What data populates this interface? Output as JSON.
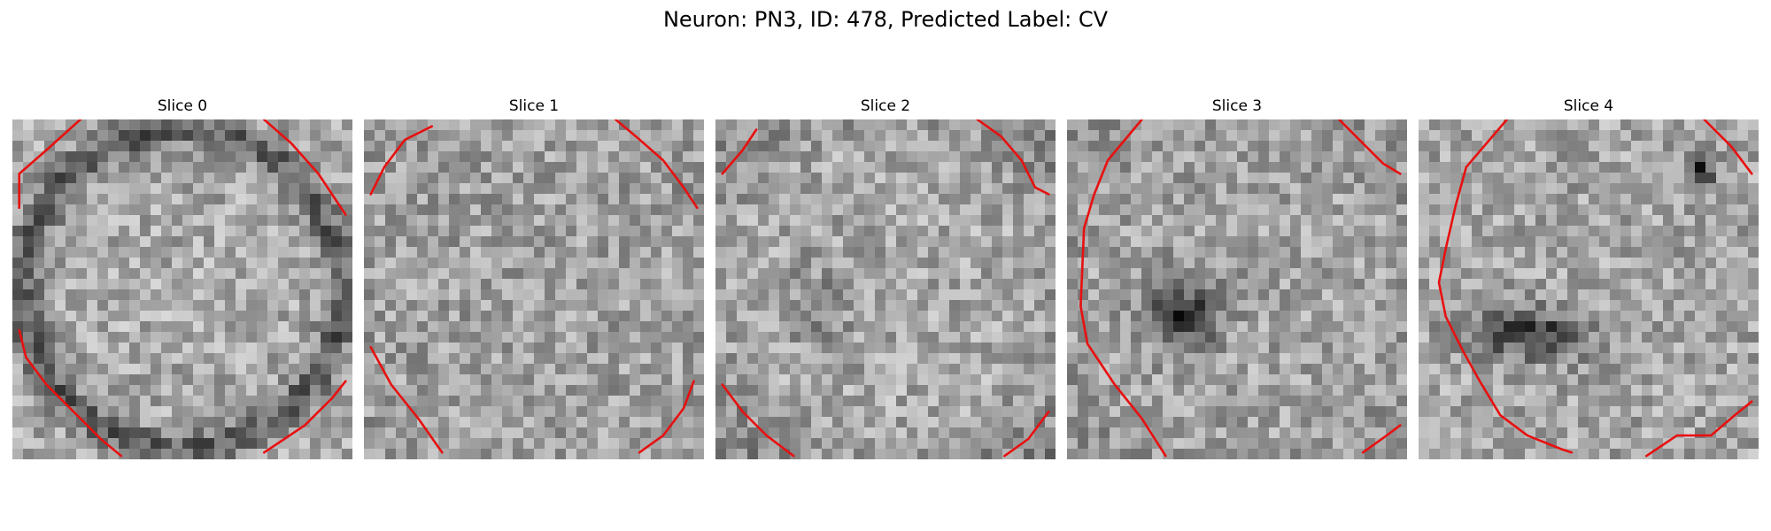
{
  "figure": {
    "title": "Neuron: PN3, ID: 478, Predicted Label: CV"
  },
  "colors": {
    "contour": "#e81010",
    "background": "#ffffff",
    "colormap": "gray"
  },
  "panels": [
    {
      "title": "Slice 0",
      "pattern": "bright-center-dark-ring",
      "contours": [
        [
          [
            0.02,
            0.26
          ],
          [
            0.02,
            0.16
          ],
          [
            0.1,
            0.09
          ],
          [
            0.2,
            0.0
          ]
        ],
        [
          [
            0.74,
            0.0
          ],
          [
            0.82,
            0.07
          ],
          [
            0.9,
            0.16
          ],
          [
            0.96,
            0.25
          ],
          [
            0.98,
            0.28
          ]
        ],
        [
          [
            0.02,
            0.62
          ],
          [
            0.04,
            0.7
          ],
          [
            0.1,
            0.78
          ],
          [
            0.18,
            0.86
          ],
          [
            0.26,
            0.94
          ],
          [
            0.32,
            0.99
          ]
        ],
        [
          [
            0.74,
            0.98
          ],
          [
            0.8,
            0.94
          ],
          [
            0.86,
            0.9
          ],
          [
            0.94,
            0.82
          ],
          [
            0.98,
            0.77
          ]
        ]
      ]
    },
    {
      "title": "Slice 1",
      "pattern": "flat-noise",
      "contours": [
        [
          [
            0.02,
            0.22
          ],
          [
            0.06,
            0.14
          ],
          [
            0.12,
            0.06
          ],
          [
            0.2,
            0.02
          ]
        ],
        [
          [
            0.74,
            0.0
          ],
          [
            0.8,
            0.05
          ],
          [
            0.88,
            0.12
          ],
          [
            0.94,
            0.2
          ],
          [
            0.98,
            0.26
          ]
        ],
        [
          [
            0.02,
            0.67
          ],
          [
            0.08,
            0.78
          ],
          [
            0.16,
            0.88
          ],
          [
            0.23,
            0.98
          ]
        ],
        [
          [
            0.81,
            0.98
          ],
          [
            0.88,
            0.93
          ],
          [
            0.94,
            0.85
          ],
          [
            0.97,
            0.77
          ]
        ]
      ]
    },
    {
      "title": "Slice 2",
      "pattern": "noise-dark-corners",
      "contours": [
        [
          [
            0.02,
            0.16
          ],
          [
            0.08,
            0.09
          ],
          [
            0.12,
            0.03
          ]
        ],
        [
          [
            0.77,
            0.0
          ],
          [
            0.84,
            0.05
          ],
          [
            0.9,
            0.12
          ],
          [
            0.94,
            0.2
          ],
          [
            0.98,
            0.22
          ]
        ],
        [
          [
            0.02,
            0.78
          ],
          [
            0.08,
            0.86
          ],
          [
            0.15,
            0.93
          ],
          [
            0.23,
            0.99
          ]
        ],
        [
          [
            0.85,
            0.99
          ],
          [
            0.92,
            0.94
          ],
          [
            0.98,
            0.86
          ]
        ]
      ]
    },
    {
      "title": "Slice 3",
      "pattern": "dark-spot-center",
      "contours": [
        [
          [
            0.22,
            0.0
          ],
          [
            0.12,
            0.12
          ],
          [
            0.08,
            0.22
          ],
          [
            0.05,
            0.32
          ],
          [
            0.04,
            0.55
          ],
          [
            0.06,
            0.66
          ],
          [
            0.14,
            0.78
          ],
          [
            0.22,
            0.88
          ],
          [
            0.29,
            0.99
          ]
        ],
        [
          [
            0.8,
            0.0
          ],
          [
            0.87,
            0.07
          ],
          [
            0.93,
            0.13
          ],
          [
            0.98,
            0.16
          ]
        ],
        [
          [
            0.87,
            0.98
          ],
          [
            0.94,
            0.93
          ],
          [
            0.98,
            0.9
          ]
        ]
      ]
    },
    {
      "title": "Slice 4",
      "pattern": "dark-blob-center",
      "contours": [
        [
          [
            0.26,
            0.0
          ],
          [
            0.14,
            0.14
          ],
          [
            0.11,
            0.25
          ],
          [
            0.08,
            0.38
          ],
          [
            0.06,
            0.48
          ],
          [
            0.08,
            0.58
          ],
          [
            0.13,
            0.68
          ],
          [
            0.18,
            0.77
          ],
          [
            0.24,
            0.87
          ],
          [
            0.32,
            0.93
          ],
          [
            0.42,
            0.97
          ],
          [
            0.45,
            0.98
          ]
        ],
        [
          [
            0.84,
            0.0
          ],
          [
            0.92,
            0.08
          ],
          [
            0.98,
            0.16
          ]
        ],
        [
          [
            0.67,
            0.99
          ],
          [
            0.76,
            0.93
          ],
          [
            0.86,
            0.93
          ],
          [
            0.93,
            0.87
          ],
          [
            0.98,
            0.83
          ]
        ]
      ]
    }
  ]
}
